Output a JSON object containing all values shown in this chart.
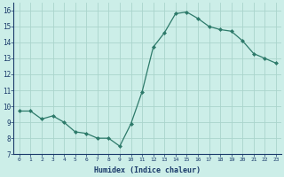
{
  "x": [
    0,
    1,
    2,
    3,
    4,
    5,
    6,
    7,
    8,
    9,
    10,
    11,
    12,
    13,
    14,
    15,
    16,
    17,
    18,
    19,
    20,
    21,
    22,
    23
  ],
  "y": [
    9.7,
    9.7,
    9.2,
    9.4,
    9.0,
    8.4,
    8.3,
    8.0,
    8.0,
    7.5,
    8.9,
    10.9,
    13.7,
    14.6,
    15.8,
    15.9,
    15.5,
    15.0,
    14.8,
    14.7,
    14.1,
    13.3,
    13.0,
    12.7
  ],
  "xlabel": "Humidex (Indice chaleur)",
  "ylim": [
    7,
    16.5
  ],
  "yticks": [
    7,
    8,
    9,
    10,
    11,
    12,
    13,
    14,
    15,
    16
  ],
  "xticks": [
    0,
    1,
    2,
    3,
    4,
    5,
    6,
    7,
    8,
    9,
    10,
    11,
    12,
    13,
    14,
    15,
    16,
    17,
    18,
    19,
    20,
    21,
    22,
    23
  ],
  "line_color": "#2d7a6a",
  "marker": "D",
  "marker_size": 2.0,
  "bg_color": "#cceee8",
  "grid_color": "#aad4cc",
  "xlabel_color": "#1a3a6a",
  "tick_color": "#1a3a6a"
}
